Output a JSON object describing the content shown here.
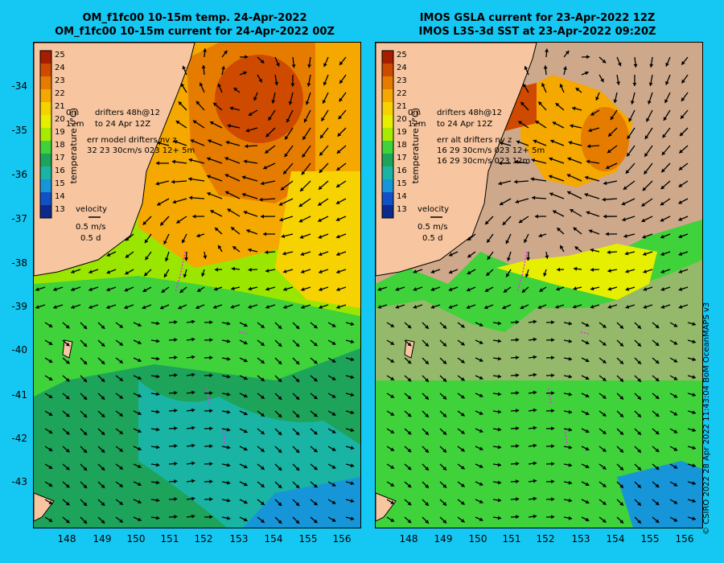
{
  "left_panel": {
    "title_line1": "OM_f1fc00 10-15m temp. 24-Apr-2022",
    "title_line2": "OM_f1fc00 10-15m current for 24-Apr-2022 00Z",
    "legend_drifters_1": "drifters 48h@12",
    "legend_drifters_2": "to 24 Apr 12Z",
    "legend_0m": "0m",
    "legend_12m": "12m",
    "err_line1": "err model drifters nv z",
    "err_line2": "32 23 30cm/s 023 12+ 5m",
    "err_line3": ""
  },
  "right_panel": {
    "title_line1": "IMOS GSLA current for 23-Apr-2022 12Z",
    "title_line2": "IMOS L3S-3d SST at 23-Apr-2022 09:20Z",
    "legend_drifters_1": "drifters 48h@12",
    "legend_drifters_2": "to 24 Apr 12Z",
    "legend_0m": "0m",
    "legend_12m": "12m",
    "err_line1": "err alt drifters nv z",
    "err_line2": "16 29 30cm/s 023 12+ 5m",
    "err_line3": "16 29 30cm/s 023 12m"
  },
  "colorbar": {
    "ticks": [
      "25",
      "24",
      "23",
      "22",
      "21",
      "20",
      "19",
      "18",
      "17",
      "16",
      "15",
      "14",
      "13"
    ],
    "label": "temperature (°C)",
    "colors": [
      "#a61e00",
      "#cd4a00",
      "#e57c00",
      "#f5a800",
      "#f6d200",
      "#e6ef00",
      "#a8ea00",
      "#3fd23a",
      "#1ea35a",
      "#19b4a3",
      "#1696d8",
      "#1250c8",
      "#0b2a8c"
    ]
  },
  "velocity_legend": {
    "label": "velocity",
    "speed": "0.5 m/s",
    "duration": "0.5 d"
  },
  "axes": {
    "lat_ticks": [
      "-34",
      "-35",
      "-36",
      "-37",
      "-38",
      "-39",
      "-40",
      "-41",
      "-42",
      "-43"
    ],
    "lon_ticks": [
      "148",
      "149",
      "150",
      "151",
      "152",
      "153",
      "154",
      "155",
      "156"
    ]
  },
  "colors": {
    "background": "#15c8f3",
    "land": "#f7c6a0",
    "no_data": "#cda88a",
    "drifter": "#ff22ff"
  },
  "credit": "© CSIRO 2022   28 Apr 2022 11:43:04 BoM OceanMAPS v3"
}
